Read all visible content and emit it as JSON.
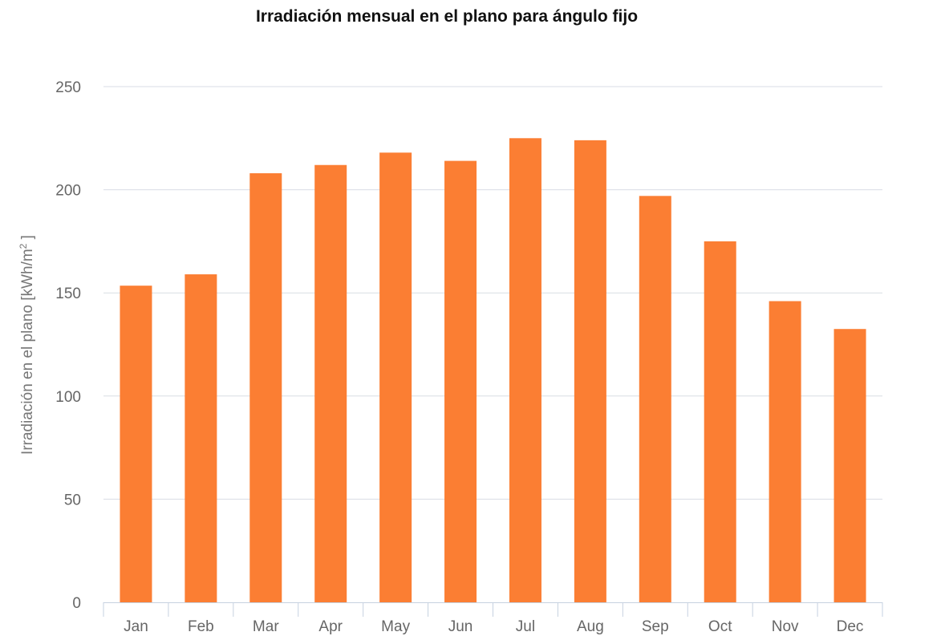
{
  "chart_data": {
    "type": "bar",
    "title": "Irradiación mensual en el plano para ángulo fijo",
    "ylabel": "Irradiación en el plano [kWh/m",
    "ylabel_sup": "2",
    "ylabel_close": " ]",
    "xlabel": "",
    "categories": [
      "Jan",
      "Feb",
      "Mar",
      "Apr",
      "May",
      "Jun",
      "Jul",
      "Aug",
      "Sep",
      "Oct",
      "Nov",
      "Dec"
    ],
    "series": [
      {
        "values": [
          153.5,
          159,
          208,
          212,
          218,
          214,
          225,
          224,
          197,
          175,
          146,
          132.5
        ],
        "color": "#fb7e33"
      }
    ],
    "ylim": [
      0,
      250
    ],
    "yticks": [
      0,
      50,
      100,
      150,
      200,
      250
    ],
    "grid": true,
    "legend": "none",
    "colors": {
      "bar": "#fb7e33",
      "grid": "#d9dde4",
      "axis": "#c6d1e0"
    }
  }
}
